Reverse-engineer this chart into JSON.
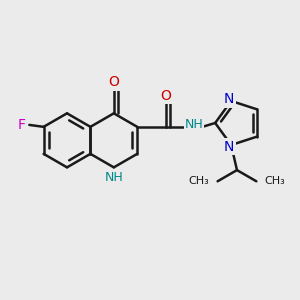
{
  "background_color": "#ebebeb",
  "bond_color": "#1a1a1a",
  "F_color": "#cc00cc",
  "O_color": "#cc0000",
  "N_color": "#0000cc",
  "NH_color": "#008888",
  "line_width": 1.8,
  "figsize": [
    3.0,
    3.0
  ],
  "dpi": 100,
  "xlim": [
    -3.2,
    4.5
  ],
  "ylim": [
    -2.8,
    2.5
  ]
}
